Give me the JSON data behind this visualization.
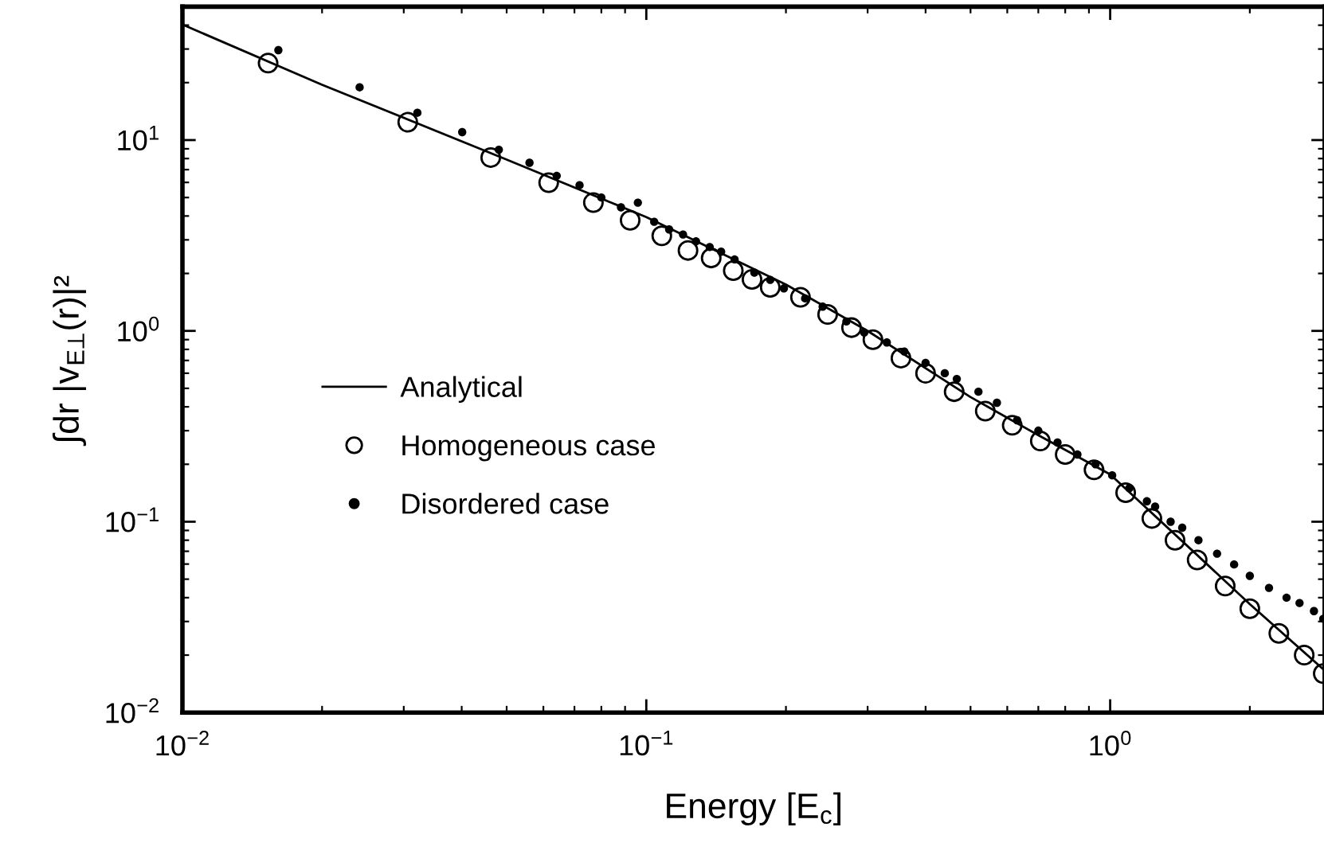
{
  "chart_data": {
    "type": "scatter",
    "xlabel": "Energy [E$_{c}$]",
    "ylabel": "∫dr |v$_{E⊥}$(r)|²",
    "log": "xy",
    "grid": false,
    "legend": "center left",
    "xlim": [
      0.01,
      2.9
    ],
    "ylim": [
      0.01,
      50
    ],
    "xticks": [
      {
        "value": 0.01,
        "label": "10$^{−2}$"
      },
      {
        "value": 0.1,
        "label": "10$^{−1}$"
      },
      {
        "value": 1,
        "label": "10$^{0}$"
      }
    ],
    "yticks": [
      {
        "value": 0.01,
        "label": "10$^{−2}$"
      },
      {
        "value": 0.1,
        "label": "10$^{−1}$"
      },
      {
        "value": 1,
        "label": "10$^{0}$"
      },
      {
        "value": 10,
        "label": "10$^{1}$"
      }
    ],
    "series": [
      {
        "name": "Analytical",
        "type": "line",
        "color": "#000000",
        "marker": "none",
        "line_style": "solid",
        "x": [
          0.01,
          0.02,
          0.05,
          0.1,
          0.2,
          0.3,
          0.5,
          0.7,
          1,
          1.5,
          2,
          2.9
        ],
        "values": [
          40.3,
          19.5,
          7.9,
          3.95,
          1.75,
          1.0,
          0.45,
          0.284,
          0.177,
          0.071,
          0.037,
          0.0166
        ]
      },
      {
        "name": "Homogeneous case",
        "color": "#000000",
        "marker": "circle",
        "x": [
          0.0153,
          0.0306,
          0.0462,
          0.0616,
          0.0769,
          0.0923,
          0.108,
          0.123,
          0.138,
          0.154,
          0.169,
          0.185,
          0.215,
          0.246,
          0.277,
          0.308,
          0.354,
          0.4,
          0.461,
          0.538,
          0.615,
          0.707,
          0.8,
          0.923,
          1.08,
          1.23,
          1.38,
          1.54,
          1.77,
          2.0,
          2.31,
          2.62,
          2.88
        ],
        "values": [
          25.3,
          12.4,
          8.1,
          5.98,
          4.7,
          3.8,
          3.15,
          2.64,
          2.41,
          2.07,
          1.86,
          1.69,
          1.5,
          1.22,
          1.04,
          0.9,
          0.72,
          0.6,
          0.48,
          0.38,
          0.32,
          0.265,
          0.225,
          0.187,
          0.142,
          0.104,
          0.08,
          0.063,
          0.046,
          0.035,
          0.026,
          0.02,
          0.016
        ]
      },
      {
        "name": "Disordered case",
        "color": "#000000",
        "marker": "circle",
        "x": [
          0.0161,
          0.0241,
          0.0321,
          0.0401,
          0.0481,
          0.056,
          0.0641,
          0.0718,
          0.08,
          0.0882,
          0.0959,
          0.104,
          0.112,
          0.12,
          0.128,
          0.137,
          0.145,
          0.155,
          0.171,
          0.185,
          0.198,
          0.22,
          0.24,
          0.27,
          0.295,
          0.33,
          0.36,
          0.4,
          0.44,
          0.467,
          0.52,
          0.57,
          0.63,
          0.7,
          0.77,
          0.85,
          0.93,
          1.01,
          1.1,
          1.2,
          1.25,
          1.35,
          1.43,
          1.55,
          1.7,
          1.85,
          2.0,
          2.2,
          2.4,
          2.56,
          2.75,
          2.88
        ],
        "values": [
          29.6,
          18.9,
          13.9,
          11.0,
          8.9,
          7.6,
          6.5,
          5.8,
          5.0,
          4.44,
          4.7,
          3.73,
          3.4,
          3.2,
          2.95,
          2.75,
          2.6,
          2.37,
          2.02,
          1.85,
          1.67,
          1.48,
          1.34,
          1.12,
          0.98,
          0.87,
          0.78,
          0.68,
          0.6,
          0.56,
          0.48,
          0.42,
          0.34,
          0.3,
          0.26,
          0.225,
          0.2,
          0.175,
          0.15,
          0.128,
          0.12,
          0.1,
          0.093,
          0.08,
          0.068,
          0.0597,
          0.052,
          0.045,
          0.04,
          0.0375,
          0.034,
          0.031
        ]
      }
    ]
  }
}
